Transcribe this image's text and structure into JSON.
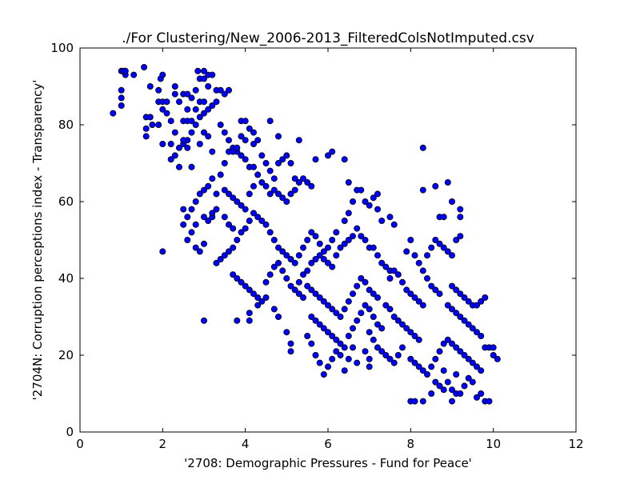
{
  "chart_data": {
    "type": "scatter",
    "title": "./For Clustering/New_2006-2013_FilteredColsNotImputed.csv",
    "xlabel": "'2708: Demographic Pressures - Fund for Peace'",
    "ylabel": "'2704N: Corruption perceptions index - Transparency'",
    "xlim": [
      0,
      12
    ],
    "ylim": [
      0,
      100
    ],
    "xticks": [
      0,
      2,
      4,
      6,
      8,
      10,
      12
    ],
    "yticks": [
      0,
      20,
      40,
      60,
      80,
      100
    ],
    "grid": false,
    "colors": {
      "marker_fill": "#0000ff",
      "marker_edge": "#000000"
    },
    "points": [
      [
        0.8,
        83
      ],
      [
        1.0,
        94
      ],
      [
        1.05,
        94
      ],
      [
        1.1,
        93
      ],
      [
        1.0,
        89
      ],
      [
        1.0,
        87
      ],
      [
        1.0,
        85
      ],
      [
        1.3,
        93
      ],
      [
        1.55,
        95
      ],
      [
        1.1,
        94
      ],
      [
        1.6,
        82
      ],
      [
        1.7,
        82
      ],
      [
        1.6,
        79
      ],
      [
        1.6,
        77
      ],
      [
        1.7,
        90
      ],
      [
        1.75,
        80
      ],
      [
        1.9,
        89
      ],
      [
        1.95,
        92
      ],
      [
        2.0,
        93
      ],
      [
        1.9,
        86
      ],
      [
        2.0,
        86
      ],
      [
        2.1,
        86
      ],
      [
        2.0,
        84
      ],
      [
        1.9,
        80
      ],
      [
        2.0,
        75
      ],
      [
        2.1,
        83
      ],
      [
        2.2,
        81
      ],
      [
        2.3,
        90
      ],
      [
        2.3,
        88
      ],
      [
        2.4,
        86
      ],
      [
        2.5,
        88
      ],
      [
        2.6,
        88
      ],
      [
        2.7,
        87
      ],
      [
        2.8,
        89
      ],
      [
        2.9,
        92
      ],
      [
        3.0,
        92
      ],
      [
        3.1,
        93
      ],
      [
        2.85,
        94
      ],
      [
        3.0,
        94
      ],
      [
        3.2,
        93
      ],
      [
        3.1,
        90
      ],
      [
        3.3,
        89
      ],
      [
        3.4,
        89
      ],
      [
        3.5,
        88
      ],
      [
        3.6,
        89
      ],
      [
        2.2,
        71
      ],
      [
        2.4,
        69
      ],
      [
        2.3,
        72
      ],
      [
        2.5,
        75
      ],
      [
        2.6,
        76
      ],
      [
        2.7,
        78
      ],
      [
        2.8,
        80
      ],
      [
        2.9,
        82
      ],
      [
        3.0,
        83
      ],
      [
        3.1,
        84
      ],
      [
        3.2,
        85
      ],
      [
        3.3,
        86
      ],
      [
        3.4,
        80
      ],
      [
        3.5,
        78
      ],
      [
        3.6,
        76
      ],
      [
        3.7,
        74
      ],
      [
        3.8,
        73
      ],
      [
        3.9,
        72
      ],
      [
        2.5,
        81
      ],
      [
        2.6,
        81
      ],
      [
        2.7,
        81
      ],
      [
        2.6,
        74
      ],
      [
        2.7,
        69
      ],
      [
        2.9,
        75
      ],
      [
        3.0,
        78
      ],
      [
        3.1,
        77
      ],
      [
        3.2,
        73
      ],
      [
        2.4,
        74
      ],
      [
        2.5,
        76
      ],
      [
        2.6,
        84
      ],
      [
        2.8,
        84
      ],
      [
        2.9,
        86
      ],
      [
        3.0,
        86
      ],
      [
        2.3,
        78
      ],
      [
        2.2,
        75
      ],
      [
        3.4,
        67
      ],
      [
        3.5,
        70
      ],
      [
        3.6,
        73
      ],
      [
        3.7,
        73
      ],
      [
        3.8,
        74
      ],
      [
        3.9,
        77
      ],
      [
        4.0,
        76
      ],
      [
        4.1,
        79
      ],
      [
        4.2,
        78
      ],
      [
        4.3,
        76
      ],
      [
        3.9,
        81
      ],
      [
        4.0,
        81
      ],
      [
        4.2,
        75
      ],
      [
        4.4,
        72
      ],
      [
        4.5,
        70
      ],
      [
        4.6,
        68
      ],
      [
        4.7,
        66
      ],
      [
        4.8,
        70
      ],
      [
        4.9,
        71
      ],
      [
        5.0,
        72
      ],
      [
        5.1,
        70
      ],
      [
        5.2,
        66
      ],
      [
        5.3,
        76
      ],
      [
        4.6,
        81
      ],
      [
        4.8,
        77
      ],
      [
        4.0,
        71
      ],
      [
        4.1,
        69
      ],
      [
        4.2,
        69
      ],
      [
        4.3,
        67
      ],
      [
        4.4,
        65
      ],
      [
        4.5,
        64
      ],
      [
        4.6,
        62
      ],
      [
        4.7,
        63
      ],
      [
        4.8,
        62
      ],
      [
        4.9,
        61
      ],
      [
        5.0,
        60
      ],
      [
        5.1,
        62
      ],
      [
        5.2,
        63
      ],
      [
        5.3,
        65
      ],
      [
        5.4,
        66
      ],
      [
        5.5,
        65
      ],
      [
        5.6,
        64
      ],
      [
        5.7,
        71
      ],
      [
        3.5,
        63
      ],
      [
        3.6,
        62
      ],
      [
        3.7,
        61
      ],
      [
        3.8,
        60
      ],
      [
        3.9,
        59
      ],
      [
        4.0,
        58
      ],
      [
        4.1,
        62
      ],
      [
        4.2,
        64
      ],
      [
        2.5,
        54
      ],
      [
        2.6,
        56
      ],
      [
        2.7,
        58
      ],
      [
        2.8,
        60
      ],
      [
        2.9,
        62
      ],
      [
        3.0,
        63
      ],
      [
        3.1,
        64
      ],
      [
        3.2,
        66
      ],
      [
        3.3,
        62
      ],
      [
        2.6,
        50
      ],
      [
        2.7,
        52
      ],
      [
        2.8,
        48
      ],
      [
        2.9,
        47
      ],
      [
        3.0,
        49
      ],
      [
        3.1,
        55
      ],
      [
        3.2,
        56
      ],
      [
        3.3,
        58
      ],
      [
        2.5,
        58
      ],
      [
        2.8,
        54
      ],
      [
        3.0,
        56
      ],
      [
        3.2,
        57
      ],
      [
        3.5,
        56
      ],
      [
        3.6,
        54
      ],
      [
        3.7,
        53
      ],
      [
        2.0,
        47
      ],
      [
        3.0,
        29
      ],
      [
        3.8,
        29
      ],
      [
        4.1,
        29
      ],
      [
        3.3,
        44
      ],
      [
        3.4,
        45
      ],
      [
        3.5,
        46
      ],
      [
        3.6,
        47
      ],
      [
        3.7,
        48
      ],
      [
        3.8,
        50
      ],
      [
        3.9,
        52
      ],
      [
        4.0,
        53
      ],
      [
        4.1,
        55
      ],
      [
        4.2,
        57
      ],
      [
        4.3,
        56
      ],
      [
        4.4,
        55
      ],
      [
        4.5,
        54
      ],
      [
        4.6,
        52
      ],
      [
        4.7,
        50
      ],
      [
        4.8,
        48
      ],
      [
        4.9,
        47
      ],
      [
        5.0,
        46
      ],
      [
        5.1,
        45
      ],
      [
        5.2,
        44
      ],
      [
        5.3,
        46
      ],
      [
        5.4,
        48
      ],
      [
        5.5,
        50
      ],
      [
        5.6,
        52
      ],
      [
        5.7,
        51
      ],
      [
        5.8,
        49
      ],
      [
        5.9,
        47
      ],
      [
        3.7,
        41
      ],
      [
        3.8,
        40
      ],
      [
        3.9,
        39
      ],
      [
        4.0,
        38
      ],
      [
        4.1,
        37
      ],
      [
        4.2,
        36
      ],
      [
        4.3,
        35
      ],
      [
        4.4,
        34
      ],
      [
        4.5,
        39
      ],
      [
        4.6,
        41
      ],
      [
        4.7,
        43
      ],
      [
        4.8,
        44
      ],
      [
        4.9,
        42
      ],
      [
        5.0,
        40
      ],
      [
        5.1,
        38
      ],
      [
        5.2,
        37
      ],
      [
        5.3,
        36
      ],
      [
        5.4,
        35
      ],
      [
        4.1,
        31
      ],
      [
        4.3,
        33
      ],
      [
        4.5,
        35
      ],
      [
        4.7,
        32
      ],
      [
        4.8,
        30
      ],
      [
        5.0,
        26
      ],
      [
        5.1,
        21
      ],
      [
        5.1,
        23
      ],
      [
        5.3,
        39
      ],
      [
        5.4,
        41
      ],
      [
        5.5,
        42
      ],
      [
        5.6,
        44
      ],
      [
        5.7,
        45
      ],
      [
        5.8,
        46
      ],
      [
        5.9,
        45
      ],
      [
        6.0,
        44
      ],
      [
        6.1,
        43
      ],
      [
        6.2,
        46
      ],
      [
        6.3,
        48
      ],
      [
        6.4,
        49
      ],
      [
        6.5,
        50
      ],
      [
        6.6,
        51
      ],
      [
        6.7,
        53
      ],
      [
        6.8,
        51
      ],
      [
        6.9,
        50
      ],
      [
        7.0,
        48
      ],
      [
        5.5,
        38
      ],
      [
        5.6,
        37
      ],
      [
        5.7,
        36
      ],
      [
        5.8,
        35
      ],
      [
        5.9,
        34
      ],
      [
        6.0,
        33
      ],
      [
        6.1,
        32
      ],
      [
        6.2,
        31
      ],
      [
        6.3,
        30
      ],
      [
        6.4,
        32
      ],
      [
        6.5,
        34
      ],
      [
        6.6,
        36
      ],
      [
        6.7,
        38
      ],
      [
        6.8,
        40
      ],
      [
        6.9,
        39
      ],
      [
        7.0,
        37
      ],
      [
        7.1,
        36
      ],
      [
        7.2,
        35
      ],
      [
        5.6,
        30
      ],
      [
        5.7,
        29
      ],
      [
        5.8,
        28
      ],
      [
        5.9,
        27
      ],
      [
        6.0,
        26
      ],
      [
        6.1,
        25
      ],
      [
        6.2,
        24
      ],
      [
        6.3,
        23
      ],
      [
        6.4,
        22
      ],
      [
        6.5,
        25
      ],
      [
        6.6,
        27
      ],
      [
        6.7,
        29
      ],
      [
        6.8,
        31
      ],
      [
        6.9,
        33
      ],
      [
        7.0,
        32
      ],
      [
        7.1,
        30
      ],
      [
        7.2,
        28
      ],
      [
        7.3,
        27
      ],
      [
        5.5,
        25
      ],
      [
        5.6,
        23
      ],
      [
        5.7,
        20
      ],
      [
        5.8,
        18
      ],
      [
        5.9,
        15
      ],
      [
        6.0,
        17
      ],
      [
        6.1,
        19
      ],
      [
        6.2,
        21
      ],
      [
        6.3,
        20
      ],
      [
        6.5,
        19
      ],
      [
        6.7,
        18
      ],
      [
        6.9,
        21
      ],
      [
        7.0,
        19
      ],
      [
        7.0,
        17
      ],
      [
        6.4,
        16
      ],
      [
        6.6,
        22
      ],
      [
        6.0,
        48
      ],
      [
        6.1,
        50
      ],
      [
        6.2,
        52
      ],
      [
        6.4,
        55
      ],
      [
        6.5,
        57
      ],
      [
        6.6,
        60
      ],
      [
        6.7,
        63
      ],
      [
        6.8,
        63
      ],
      [
        6.9,
        60
      ],
      [
        7.0,
        59
      ],
      [
        7.1,
        61
      ],
      [
        7.2,
        58
      ],
      [
        7.3,
        55
      ],
      [
        7.1,
        48
      ],
      [
        7.2,
        46
      ],
      [
        7.3,
        44
      ],
      [
        7.4,
        43
      ],
      [
        7.5,
        42
      ],
      [
        6.0,
        72
      ],
      [
        6.1,
        73
      ],
      [
        6.4,
        71
      ],
      [
        6.5,
        65
      ],
      [
        7.2,
        62
      ],
      [
        7.5,
        56
      ],
      [
        7.6,
        54
      ],
      [
        7.0,
        26
      ],
      [
        7.1,
        24
      ],
      [
        7.2,
        22
      ],
      [
        7.3,
        21
      ],
      [
        7.4,
        20
      ],
      [
        7.5,
        19
      ],
      [
        7.6,
        18
      ],
      [
        7.7,
        20
      ],
      [
        7.8,
        22
      ],
      [
        7.4,
        33
      ],
      [
        7.5,
        32
      ],
      [
        7.6,
        30
      ],
      [
        7.7,
        29
      ],
      [
        7.8,
        28
      ],
      [
        7.9,
        27
      ],
      [
        8.0,
        26
      ],
      [
        8.1,
        25
      ],
      [
        8.2,
        24
      ],
      [
        7.5,
        40
      ],
      [
        7.6,
        42
      ],
      [
        7.7,
        41
      ],
      [
        7.8,
        39
      ],
      [
        7.9,
        37
      ],
      [
        8.0,
        36
      ],
      [
        8.1,
        35
      ],
      [
        8.2,
        34
      ],
      [
        8.3,
        33
      ],
      [
        7.9,
        47
      ],
      [
        8.0,
        50
      ],
      [
        8.1,
        46
      ],
      [
        8.2,
        44
      ],
      [
        8.3,
        42
      ],
      [
        8.4,
        40
      ],
      [
        8.5,
        38
      ],
      [
        8.6,
        37
      ],
      [
        8.7,
        36
      ],
      [
        8.0,
        19
      ],
      [
        8.1,
        18
      ],
      [
        8.2,
        17
      ],
      [
        8.3,
        16
      ],
      [
        8.4,
        15
      ],
      [
        8.5,
        17
      ],
      [
        8.6,
        19
      ],
      [
        8.7,
        21
      ],
      [
        8.8,
        23
      ],
      [
        8.0,
        8
      ],
      [
        8.1,
        8
      ],
      [
        8.3,
        8
      ],
      [
        8.5,
        10
      ],
      [
        8.6,
        13
      ],
      [
        8.7,
        12
      ],
      [
        8.8,
        11
      ],
      [
        9.0,
        8
      ],
      [
        9.1,
        10
      ],
      [
        8.3,
        74
      ],
      [
        8.3,
        63
      ],
      [
        8.6,
        64
      ],
      [
        8.9,
        65
      ],
      [
        9.0,
        60
      ],
      [
        9.2,
        56
      ],
      [
        9.2,
        58
      ],
      [
        8.7,
        56
      ],
      [
        8.8,
        56
      ],
      [
        8.6,
        50
      ],
      [
        8.7,
        49
      ],
      [
        8.8,
        48
      ],
      [
        8.9,
        47
      ],
      [
        9.0,
        46
      ],
      [
        9.1,
        50
      ],
      [
        9.2,
        51
      ],
      [
        8.5,
        48
      ],
      [
        8.4,
        46
      ],
      [
        8.9,
        33
      ],
      [
        9.0,
        32
      ],
      [
        9.1,
        31
      ],
      [
        9.2,
        30
      ],
      [
        9.3,
        29
      ],
      [
        9.4,
        28
      ],
      [
        9.5,
        27
      ],
      [
        9.6,
        26
      ],
      [
        9.7,
        25
      ],
      [
        9.0,
        38
      ],
      [
        9.1,
        37
      ],
      [
        9.2,
        36
      ],
      [
        9.3,
        35
      ],
      [
        9.4,
        34
      ],
      [
        9.5,
        33
      ],
      [
        9.6,
        33
      ],
      [
        9.7,
        34
      ],
      [
        9.8,
        35
      ],
      [
        8.9,
        24
      ],
      [
        9.0,
        23
      ],
      [
        9.1,
        22
      ],
      [
        9.2,
        21
      ],
      [
        9.3,
        20
      ],
      [
        9.4,
        19
      ],
      [
        9.5,
        18
      ],
      [
        9.6,
        17
      ],
      [
        9.7,
        16
      ],
      [
        9.8,
        22
      ],
      [
        9.9,
        22
      ],
      [
        10.0,
        20
      ],
      [
        10.0,
        22
      ],
      [
        10.1,
        19
      ],
      [
        9.5,
        13
      ],
      [
        9.8,
        8
      ],
      [
        9.9,
        8
      ],
      [
        9.7,
        10
      ],
      [
        8.9,
        13
      ],
      [
        9.0,
        11
      ],
      [
        9.2,
        10
      ],
      [
        9.3,
        12
      ],
      [
        9.4,
        14
      ],
      [
        9.1,
        15
      ],
      [
        8.8,
        16
      ],
      [
        9.6,
        9
      ]
    ]
  }
}
